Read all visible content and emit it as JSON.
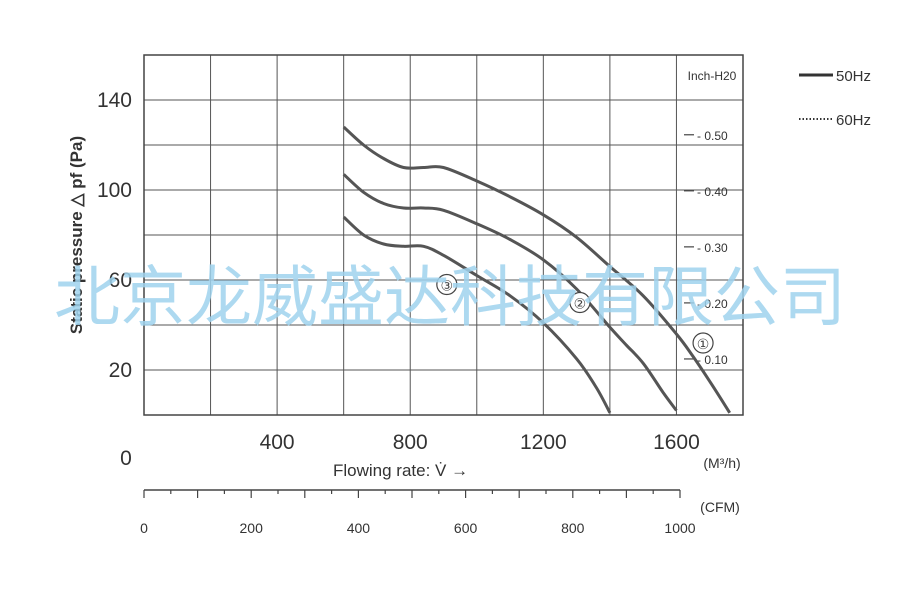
{
  "chart_data": {
    "type": "line",
    "xlabel": "Flowing rate: V̇ →",
    "xunit": "(M³/h)",
    "xticks": [
      "0",
      "400",
      "800",
      "1200",
      "1600"
    ],
    "ylabel": "Static pressure △ pf (Pa)",
    "yticks": [
      "20",
      "60",
      "100",
      "140"
    ],
    "y2_unit": "Inch-H20",
    "y2_ticks": [
      "0.10",
      "0.20",
      "0.30",
      "0.40",
      "0.50"
    ],
    "x2_unit": "(CFM)",
    "x2_ticks": [
      "0",
      "200",
      "400",
      "600",
      "800",
      "1000"
    ],
    "xlim": [
      0,
      1800
    ],
    "ylim": [
      0,
      160
    ],
    "grid": true,
    "legend_position": "top-right",
    "legend": [
      {
        "label": "50Hz",
        "style": "solid"
      },
      {
        "label": "60Hz",
        "style": "dotted"
      }
    ],
    "series": [
      {
        "name": "①",
        "points": [
          [
            600,
            128
          ],
          [
            660,
            120
          ],
          [
            720,
            114
          ],
          [
            780,
            110
          ],
          [
            840,
            110
          ],
          [
            900,
            110
          ],
          [
            1000,
            104
          ],
          [
            1100,
            97
          ],
          [
            1200,
            89
          ],
          [
            1300,
            79
          ],
          [
            1400,
            66
          ],
          [
            1500,
            53
          ],
          [
            1600,
            36
          ],
          [
            1650,
            26
          ],
          [
            1700,
            15
          ],
          [
            1760,
            1
          ]
        ]
      },
      {
        "name": "②",
        "points": [
          [
            600,
            107
          ],
          [
            660,
            99
          ],
          [
            720,
            94
          ],
          [
            780,
            92
          ],
          [
            840,
            92
          ],
          [
            900,
            91
          ],
          [
            1000,
            85
          ],
          [
            1100,
            78
          ],
          [
            1200,
            69
          ],
          [
            1300,
            56
          ],
          [
            1400,
            39
          ],
          [
            1450,
            31
          ],
          [
            1500,
            23
          ],
          [
            1560,
            10
          ],
          [
            1600,
            2
          ]
        ]
      },
      {
        "name": "③",
        "points": [
          [
            600,
            88
          ],
          [
            660,
            80
          ],
          [
            720,
            76
          ],
          [
            780,
            75
          ],
          [
            840,
            75
          ],
          [
            900,
            71
          ],
          [
            1000,
            62
          ],
          [
            1100,
            53
          ],
          [
            1200,
            41
          ],
          [
            1300,
            25
          ],
          [
            1360,
            12
          ],
          [
            1400,
            1
          ]
        ]
      }
    ],
    "series_label_positions": [
      {
        "name": "①",
        "x": 1680,
        "y": 32
      },
      {
        "name": "②",
        "x": 1310,
        "y": 50
      },
      {
        "name": "③",
        "x": 910,
        "y": 58
      }
    ]
  },
  "watermark": "北京龙威盛达科技有限公司"
}
